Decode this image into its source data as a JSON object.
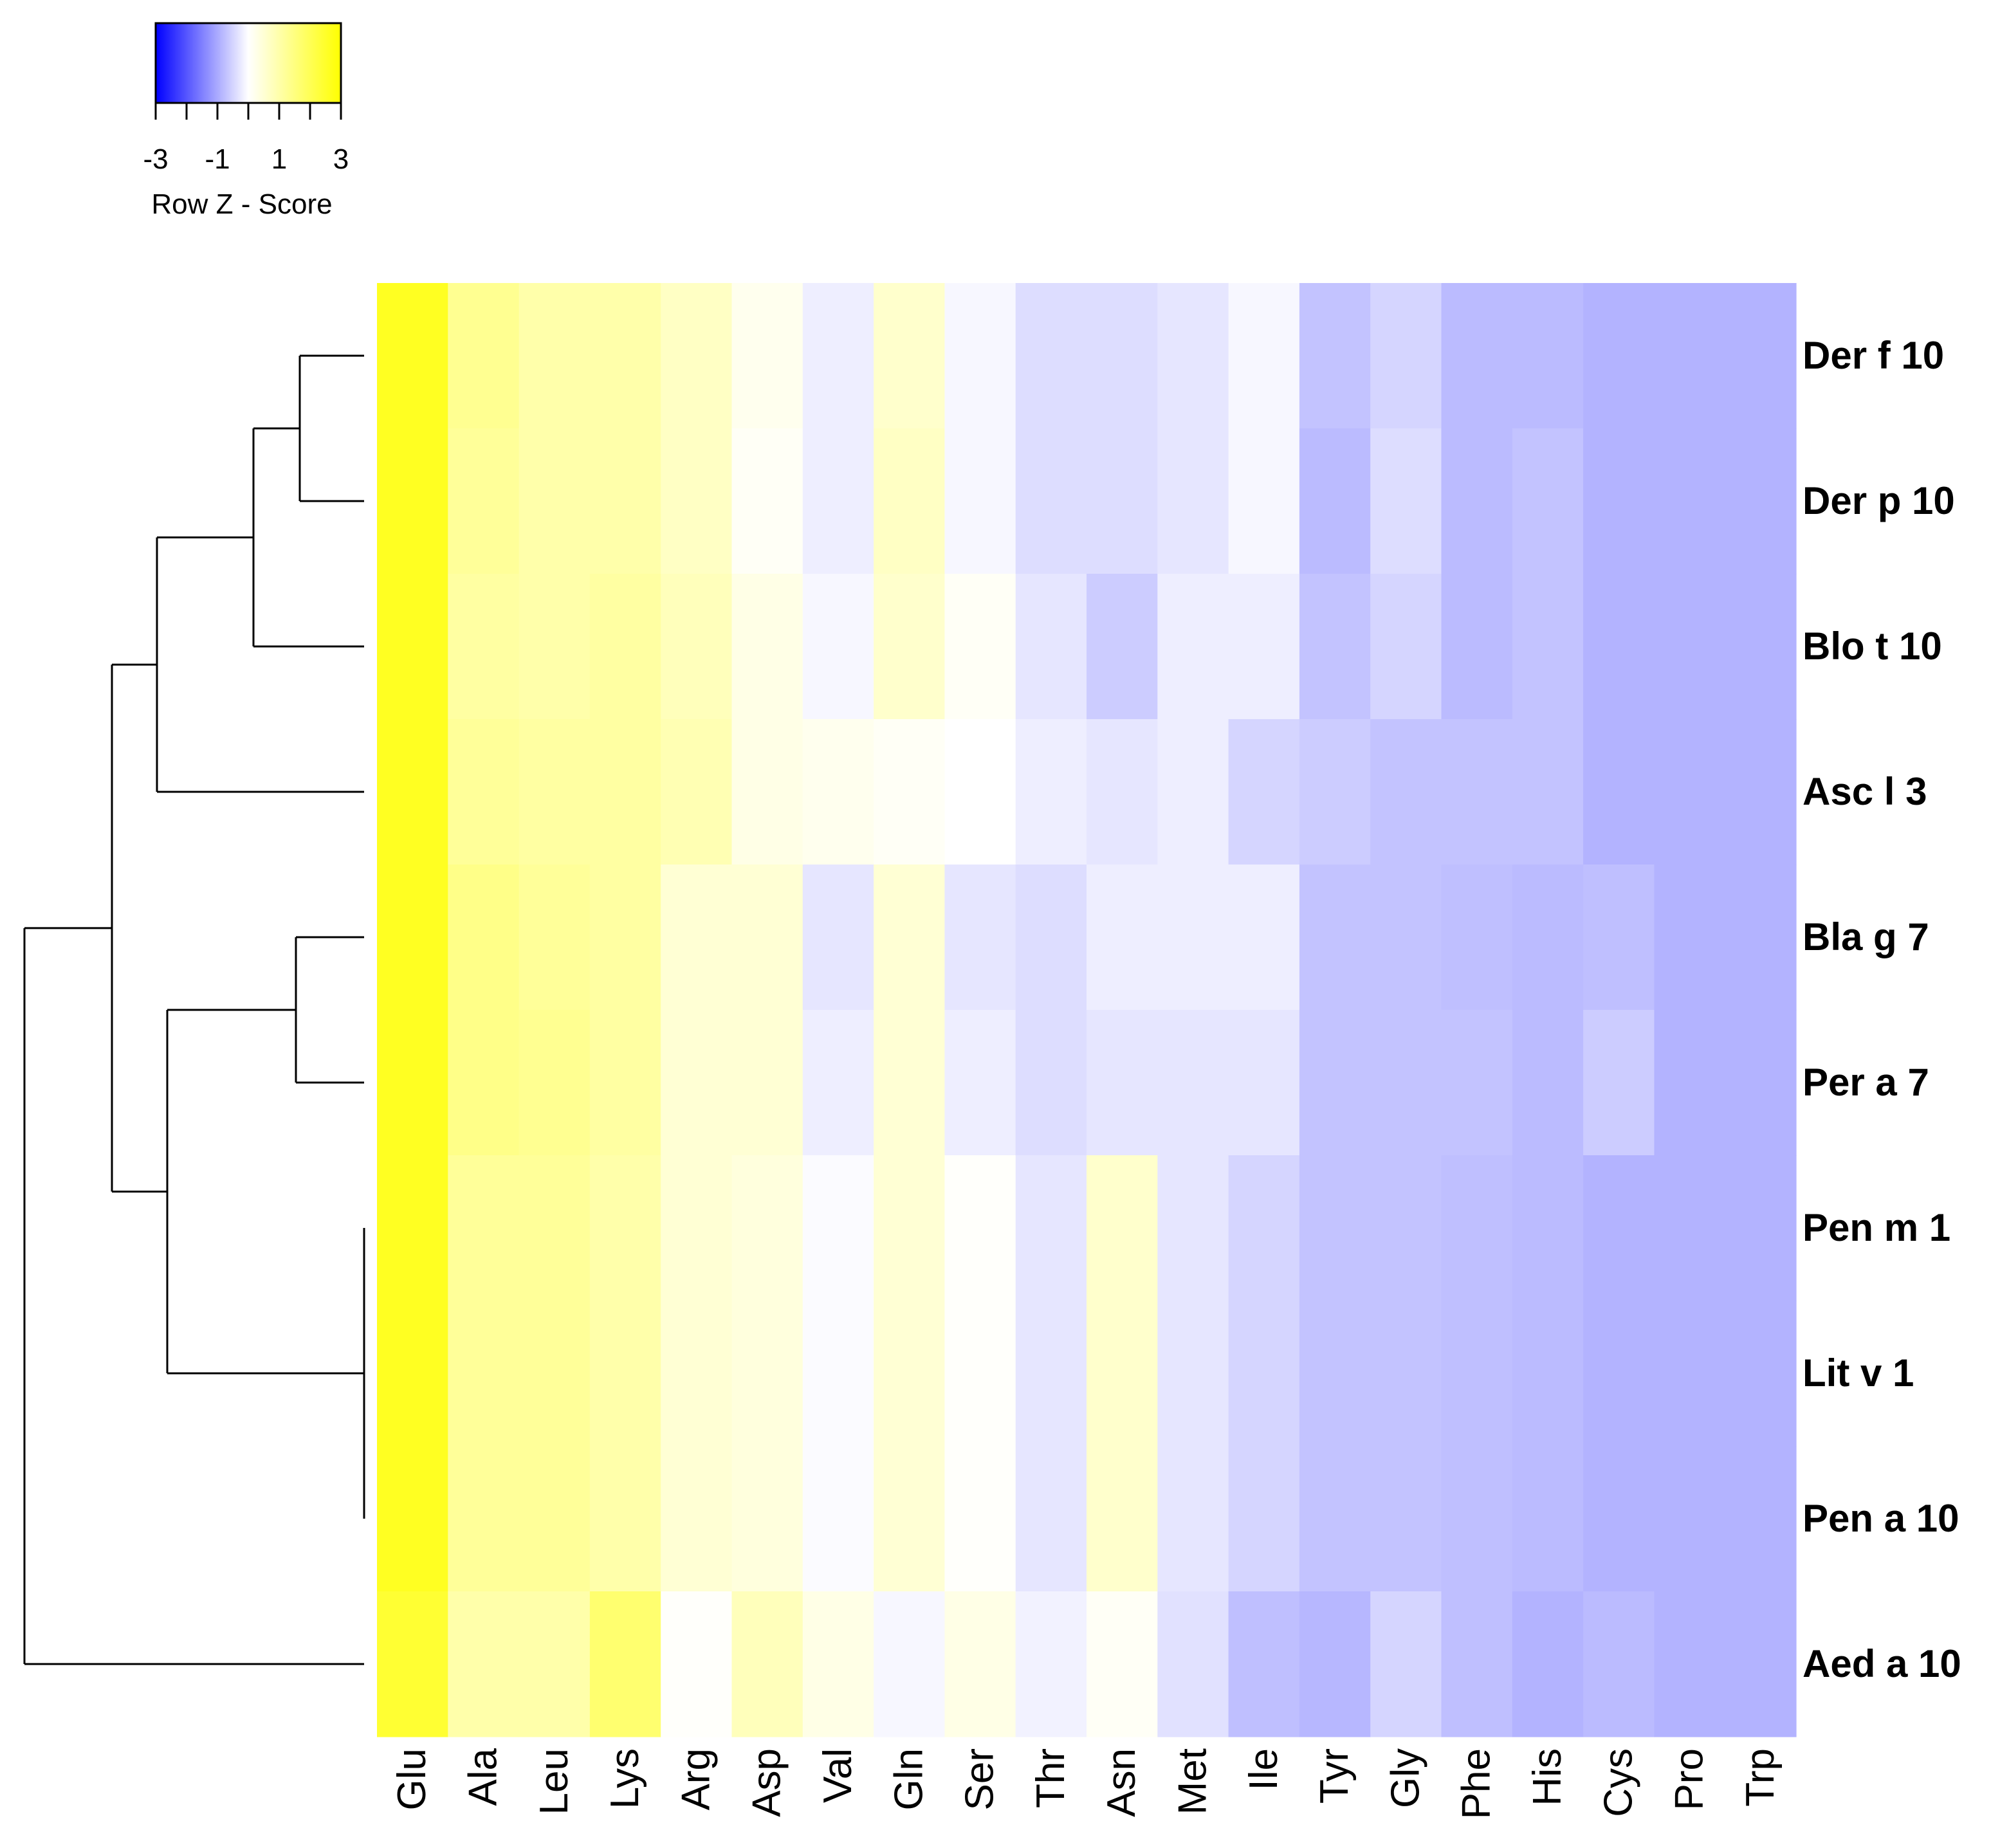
{
  "chart_data": {
    "type": "heatmap",
    "title": "",
    "columns": [
      "Glu",
      "Ala",
      "Leu",
      "Lys",
      "Arg",
      "Asp",
      "Val",
      "Gln",
      "Ser",
      "Thr",
      "Asn",
      "Met",
      "Ile",
      "Tyr",
      "Gly",
      "Phe",
      "His",
      "Cys",
      "Pro",
      "Trp"
    ],
    "rows": [
      "Der f 10",
      "Der p 10",
      "Blo t 10",
      "Asc l 3",
      "Bla g 7",
      "Per a 7",
      "Pen m 1",
      "Lit v 1",
      "Pen a 10",
      "Aed a 10"
    ],
    "values": [
      [
        2.6,
        1.3,
        1.0,
        1.0,
        0.7,
        0.2,
        -0.2,
        0.6,
        -0.1,
        -0.4,
        -0.4,
        -0.3,
        -0.1,
        -0.7,
        -0.5,
        -0.8,
        -0.8,
        -0.9,
        -0.9,
        -0.9
      ],
      [
        2.6,
        1.2,
        1.0,
        1.0,
        0.7,
        0.1,
        -0.2,
        0.7,
        -0.1,
        -0.4,
        -0.4,
        -0.3,
        -0.1,
        -0.8,
        -0.4,
        -0.8,
        -0.7,
        -0.9,
        -0.9,
        -0.9
      ],
      [
        2.6,
        1.1,
        1.0,
        1.1,
        0.8,
        0.3,
        -0.1,
        0.6,
        0.1,
        -0.3,
        -0.6,
        -0.2,
        -0.2,
        -0.7,
        -0.5,
        -0.8,
        -0.7,
        -0.9,
        -0.9,
        -0.9
      ],
      [
        2.6,
        1.2,
        1.1,
        1.1,
        0.9,
        0.3,
        0.2,
        0.1,
        0.0,
        -0.2,
        -0.3,
        -0.2,
        -0.5,
        -0.6,
        -0.7,
        -0.7,
        -0.7,
        -0.9,
        -0.9,
        -0.9
      ],
      [
        2.6,
        1.4,
        1.2,
        1.1,
        0.5,
        0.5,
        -0.3,
        0.5,
        -0.3,
        -0.4,
        -0.2,
        -0.2,
        -0.2,
        -0.7,
        -0.7,
        -0.75,
        -0.8,
        -0.75,
        -0.9,
        -0.9
      ],
      [
        2.6,
        1.4,
        1.3,
        1.1,
        0.5,
        0.5,
        -0.2,
        0.5,
        -0.2,
        -0.4,
        -0.3,
        -0.3,
        -0.3,
        -0.7,
        -0.7,
        -0.7,
        -0.8,
        -0.6,
        -0.9,
        -0.9
      ],
      [
        2.6,
        1.2,
        1.2,
        1.0,
        0.5,
        0.4,
        -0.05,
        0.5,
        0.05,
        -0.3,
        0.6,
        -0.3,
        -0.5,
        -0.7,
        -0.7,
        -0.75,
        -0.8,
        -0.9,
        -0.9,
        -0.9
      ],
      [
        2.6,
        1.2,
        1.2,
        1.0,
        0.5,
        0.4,
        -0.05,
        0.5,
        0.05,
        -0.3,
        0.6,
        -0.3,
        -0.5,
        -0.7,
        -0.7,
        -0.75,
        -0.8,
        -0.9,
        -0.9,
        -0.9
      ],
      [
        2.6,
        1.2,
        1.2,
        1.0,
        0.5,
        0.4,
        -0.05,
        0.5,
        0.05,
        -0.3,
        0.6,
        -0.3,
        -0.5,
        -0.7,
        -0.7,
        -0.75,
        -0.8,
        -0.9,
        -0.9,
        -0.9
      ],
      [
        2.4,
        1.0,
        1.0,
        1.7,
        0.05,
        0.8,
        0.3,
        -0.1,
        0.3,
        -0.15,
        0.1,
        -0.35,
        -0.75,
        -0.85,
        -0.5,
        -0.75,
        -0.9,
        -0.8,
        -0.9,
        -0.9
      ]
    ],
    "color_scale": {
      "low": "#0000ff",
      "mid": "#ffffff",
      "high": "#ffff00",
      "range": [
        -3,
        3
      ]
    },
    "color_key": {
      "title": "Row Z - Score",
      "tick_labels": [
        "-3",
        "-1",
        "1",
        "3"
      ],
      "tick_values": [
        -3,
        -1,
        1,
        3
      ],
      "minor_ticks": [
        -3,
        -2,
        -1,
        0,
        1,
        2,
        3
      ]
    },
    "dendrogram": {
      "merges": [
        [
          "Pen m 1",
          "Lit v 1",
          "Pen a 10"
        ],
        [
          "Der f 10",
          "Der p 10"
        ],
        [
          "Bla g 7",
          "Per a 7"
        ],
        [
          "Der f 10 + Der p 10",
          "Blo t 10"
        ],
        [
          "Der f 10 + Der p 10 + Blo t 10",
          "Asc l 3"
        ],
        [
          "Bla g 7 + Per a 7",
          "Pen m 1 + Lit v 1 + Pen a 10"
        ],
        [
          "Der f 10 + Der p 10 + Blo t 10 + Asc l 3",
          "Bla g 7 + Per a 7 + Pen m 1 + Lit v 1 + Pen a 10"
        ],
        [
          "all above",
          "Aed a 10"
        ]
      ]
    }
  }
}
